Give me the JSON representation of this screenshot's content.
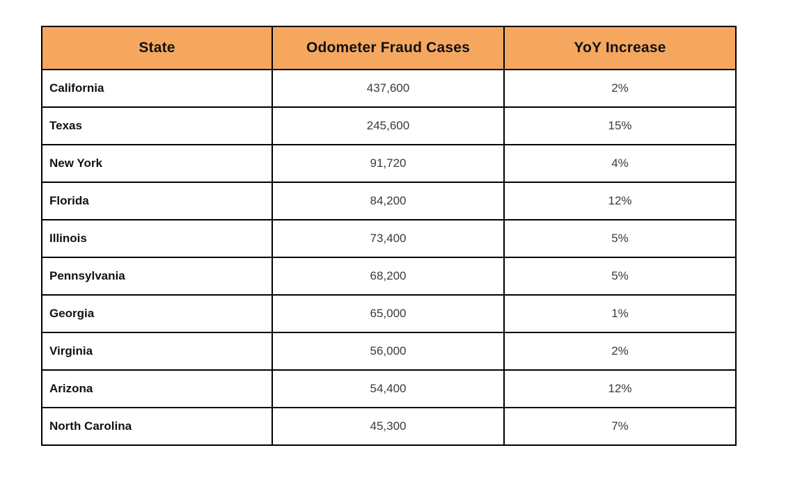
{
  "table": {
    "headers": [
      "State",
      "Odometer Fraud Cases",
      "YoY Increase"
    ],
    "rows": [
      {
        "state": "California",
        "cases": "437,600",
        "yoy": "2%"
      },
      {
        "state": "Texas",
        "cases": "245,600",
        "yoy": "15%"
      },
      {
        "state": "New York",
        "cases": "91,720",
        "yoy": "4%"
      },
      {
        "state": "Florida",
        "cases": "84,200",
        "yoy": "12%"
      },
      {
        "state": "Illinois",
        "cases": "73,400",
        "yoy": "5%"
      },
      {
        "state": "Pennsylvania",
        "cases": "68,200",
        "yoy": "5%"
      },
      {
        "state": "Georgia",
        "cases": "65,000",
        "yoy": "1%"
      },
      {
        "state": "Virginia",
        "cases": "56,000",
        "yoy": "2%"
      },
      {
        "state": "Arizona",
        "cases": "54,400",
        "yoy": "12%"
      },
      {
        "state": "North Carolina",
        "cases": "45,300",
        "yoy": "7%"
      }
    ]
  },
  "colors": {
    "header_bg": "#f5a75f",
    "border": "#000000",
    "state_text": "#111111",
    "value_text": "#3a3a3a",
    "page_bg": "#ffffff"
  },
  "chart_data": {
    "type": "table",
    "title": "",
    "columns": [
      "State",
      "Odometer Fraud Cases",
      "YoY Increase"
    ],
    "rows": [
      [
        "California",
        437600,
        "2%"
      ],
      [
        "Texas",
        245600,
        "15%"
      ],
      [
        "New York",
        91720,
        "4%"
      ],
      [
        "Florida",
        84200,
        "12%"
      ],
      [
        "Illinois",
        73400,
        "5%"
      ],
      [
        "Pennsylvania",
        68200,
        "5%"
      ],
      [
        "Georgia",
        65000,
        "1%"
      ],
      [
        "Virginia",
        56000,
        "2%"
      ],
      [
        "Arizona",
        54400,
        "12%"
      ],
      [
        "North Carolina",
        45300,
        "7%"
      ]
    ],
    "layout": {
      "header_background": "#f5a75f",
      "grid": true,
      "state_column_align": "left",
      "value_columns_align": "center"
    }
  }
}
